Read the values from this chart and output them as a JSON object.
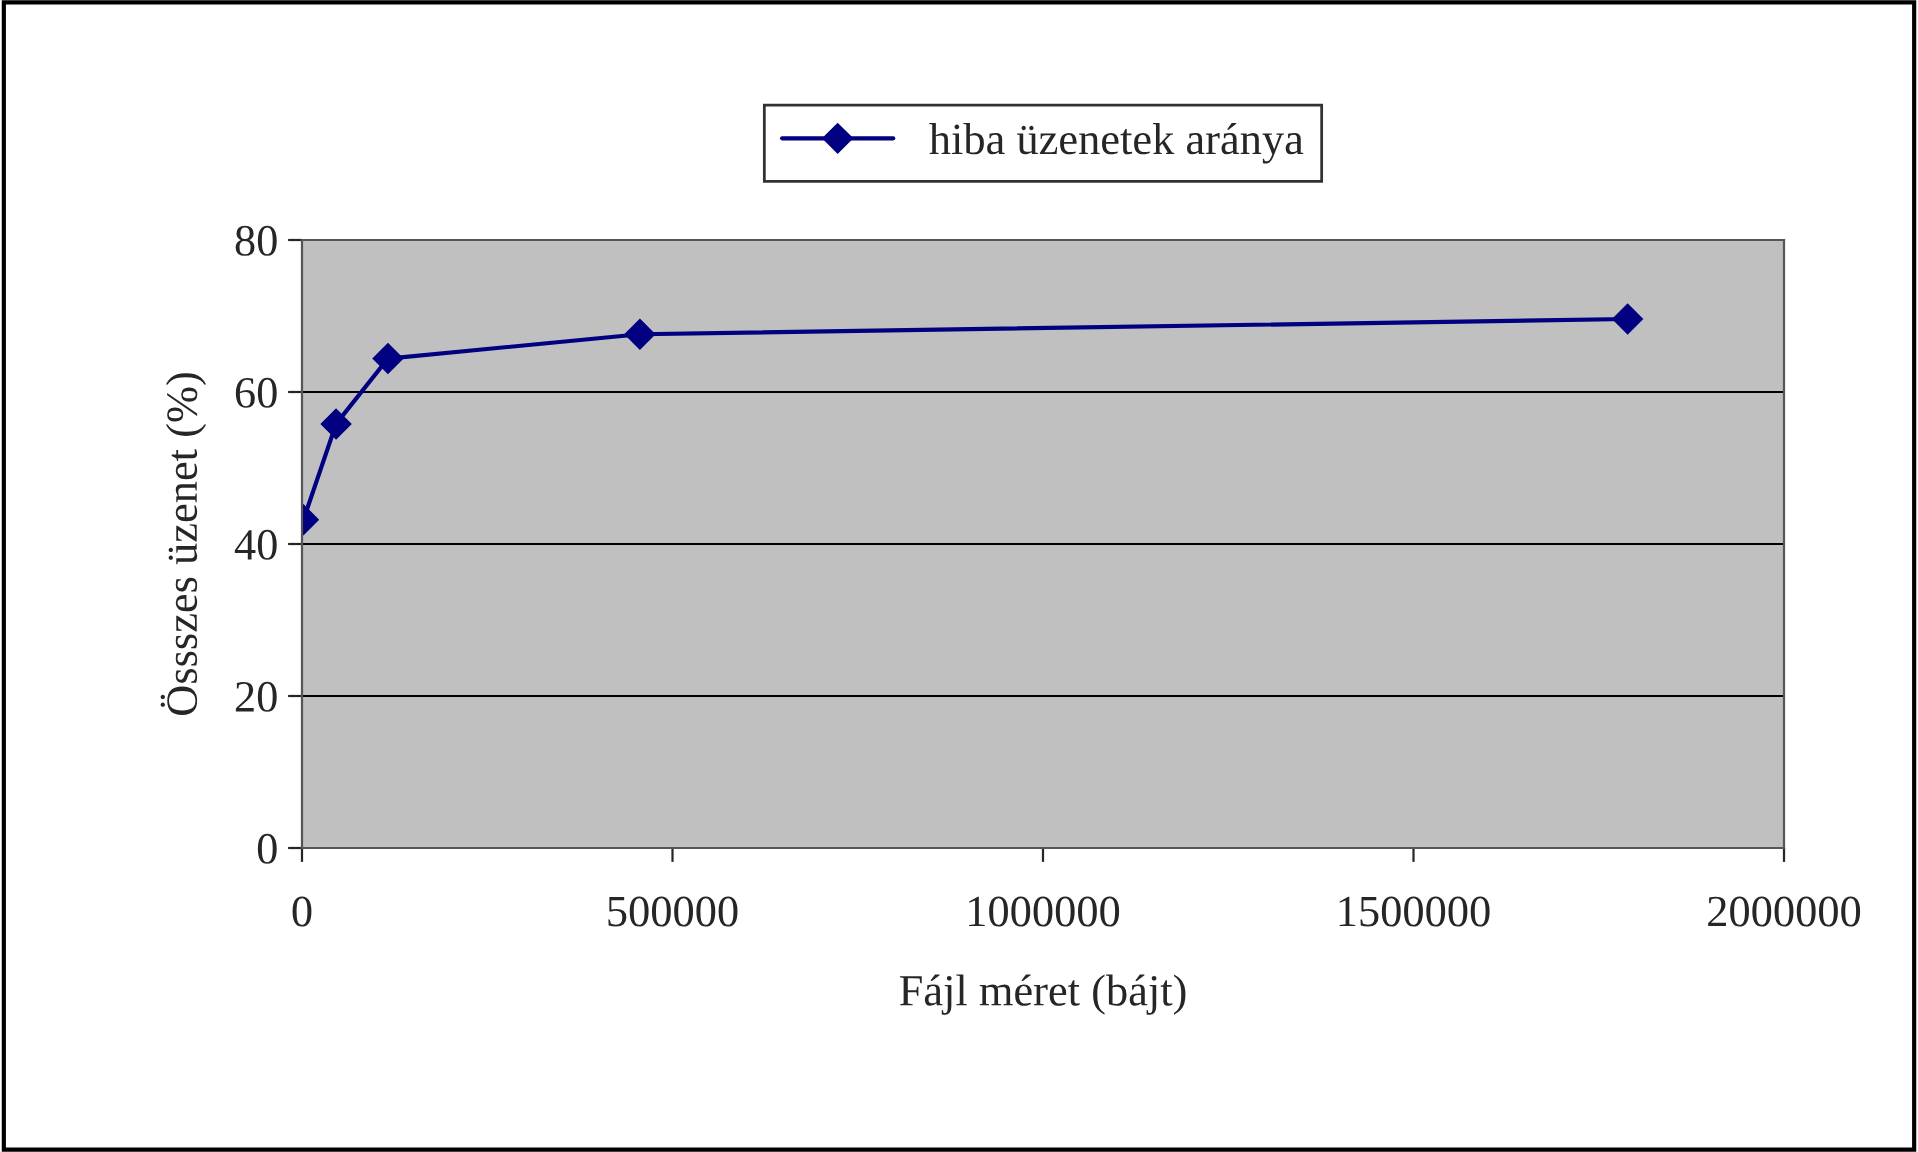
{
  "chart_data": {
    "type": "line",
    "xlabel": "Fájl méret (bájt)",
    "ylabel": "Össszes üzenet (%)",
    "x": [
      2000,
      46000,
      116000,
      456000,
      1789000
    ],
    "series": [
      {
        "name": "hiba üzenetek aránya",
        "color": "#000080",
        "values": [
          43.2,
          55.8,
          64.4,
          67.6,
          69.6
        ]
      }
    ],
    "xlim": [
      0,
      2000000
    ],
    "xticks": [
      0,
      500000,
      1000000,
      1500000,
      2000000
    ],
    "ylim": [
      0,
      80
    ],
    "yticks": [
      0,
      20,
      40,
      60,
      80
    ],
    "grid": "y",
    "legend": "top",
    "marker": "diamond",
    "line_style": "solid"
  }
}
